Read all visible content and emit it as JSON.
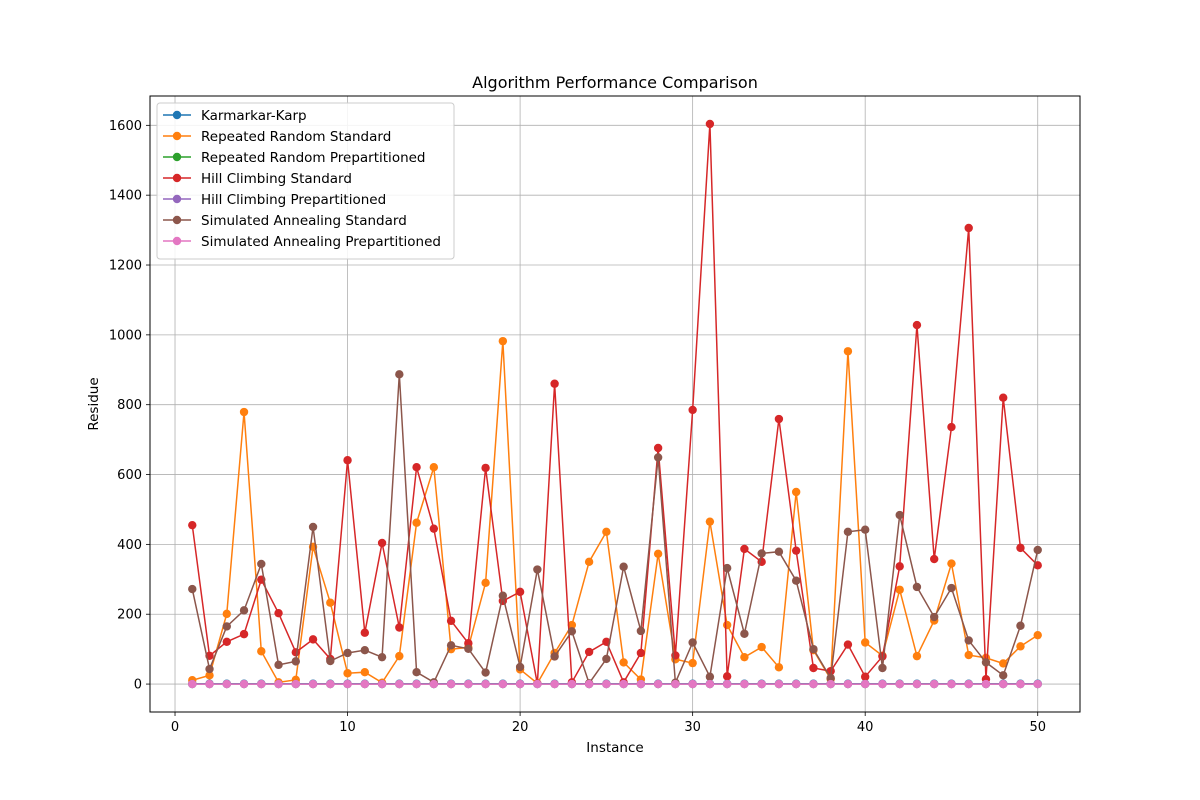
{
  "chart_data": {
    "type": "line",
    "title": "Algorithm Performance Comparison",
    "xlabel": "Instance",
    "ylabel": "Residue",
    "xlim": [
      -1.45,
      52.45
    ],
    "ylim": [
      -80,
      1684
    ],
    "xticks": [
      0,
      10,
      20,
      30,
      40,
      50
    ],
    "yticks": [
      0,
      200,
      400,
      600,
      800,
      1000,
      1200,
      1400,
      1600
    ],
    "grid": true,
    "legend_position": "upper-left",
    "x": [
      1,
      2,
      3,
      4,
      5,
      6,
      7,
      8,
      9,
      10,
      11,
      12,
      13,
      14,
      15,
      16,
      17,
      18,
      19,
      20,
      21,
      22,
      23,
      24,
      25,
      26,
      27,
      28,
      29,
      30,
      31,
      32,
      33,
      34,
      35,
      36,
      37,
      38,
      39,
      40,
      41,
      42,
      43,
      44,
      45,
      46,
      47,
      48,
      49,
      50
    ],
    "series": [
      {
        "name": "Karmarkar-Karp",
        "color": "#1f77b4",
        "values": [
          1,
          1,
          1,
          1,
          1,
          1,
          1,
          1,
          1,
          1,
          1,
          1,
          1,
          1,
          1,
          1,
          1,
          1,
          1,
          1,
          1,
          1,
          1,
          1,
          1,
          1,
          1,
          1,
          1,
          1,
          1,
          1,
          1,
          1,
          1,
          1,
          1,
          1,
          1,
          1,
          1,
          1,
          1,
          1,
          1,
          1,
          1,
          1,
          1,
          1
        ]
      },
      {
        "name": "Repeated Random Standard",
        "color": "#ff7f0e",
        "values": [
          11,
          25,
          201,
          779,
          94,
          5,
          12,
          393,
          233,
          31,
          34,
          4,
          80,
          462,
          621,
          100,
          105,
          290,
          982,
          42,
          2,
          89,
          169,
          350,
          436,
          62,
          13,
          373,
          71,
          60,
          465,
          169,
          77,
          106,
          48,
          550,
          97,
          14,
          953,
          119,
          81,
          270,
          80,
          182,
          345,
          83,
          75,
          59,
          108,
          140
        ]
      },
      {
        "name": "Repeated Random Prepartitioned",
        "color": "#2ca02c",
        "values": [
          0,
          0,
          0,
          0,
          0,
          0,
          0,
          0,
          0,
          0,
          0,
          0,
          0,
          0,
          0,
          0,
          0,
          0,
          0,
          0,
          0,
          0,
          0,
          0,
          0,
          0,
          0,
          0,
          0,
          0,
          0,
          0,
          0,
          0,
          0,
          0,
          0,
          0,
          0,
          0,
          0,
          0,
          0,
          0,
          0,
          0,
          0,
          0,
          0,
          0
        ]
      },
      {
        "name": "Hill Climbing Standard",
        "color": "#d62728",
        "values": [
          455,
          81,
          121,
          143,
          299,
          203,
          91,
          128,
          72,
          641,
          147,
          404,
          162,
          621,
          445,
          181,
          117,
          619,
          238,
          264,
          1,
          860,
          5,
          92,
          121,
          5,
          89,
          676,
          82,
          785,
          1604,
          22,
          387,
          350,
          759,
          382,
          46,
          37,
          113,
          21,
          79,
          337,
          1028,
          358,
          736,
          1306,
          14,
          820,
          390,
          340
        ]
      },
      {
        "name": "Hill Climbing Prepartitioned",
        "color": "#9467bd",
        "values": [
          0,
          0,
          0,
          0,
          0,
          0,
          0,
          0,
          0,
          0,
          0,
          0,
          0,
          0,
          0,
          0,
          0,
          0,
          0,
          0,
          0,
          0,
          0,
          0,
          0,
          0,
          0,
          0,
          0,
          0,
          0,
          0,
          0,
          0,
          0,
          0,
          0,
          0,
          0,
          0,
          0,
          0,
          0,
          0,
          0,
          0,
          0,
          0,
          0,
          0
        ]
      },
      {
        "name": "Simulated Annealing Standard",
        "color": "#8c564b",
        "values": [
          272,
          43,
          165,
          211,
          344,
          55,
          65,
          450,
          66,
          89,
          97,
          77,
          887,
          34,
          5,
          111,
          101,
          33,
          253,
          49,
          328,
          79,
          151,
          2,
          72,
          336,
          152,
          649,
          4,
          119,
          21,
          332,
          144,
          374,
          379,
          296,
          100,
          17,
          436,
          442,
          46,
          484,
          278,
          192,
          275,
          125,
          62,
          25,
          167,
          384
        ]
      },
      {
        "name": "Simulated Annealing Prepartitioned",
        "color": "#e377c2",
        "values": [
          0,
          0,
          0,
          0,
          0,
          0,
          0,
          0,
          0,
          0,
          0,
          0,
          0,
          0,
          0,
          0,
          0,
          0,
          0,
          0,
          0,
          0,
          0,
          0,
          0,
          0,
          0,
          0,
          0,
          0,
          0,
          0,
          0,
          0,
          0,
          0,
          0,
          0,
          0,
          0,
          0,
          0,
          0,
          0,
          0,
          0,
          0,
          0,
          0,
          0
        ]
      }
    ]
  }
}
